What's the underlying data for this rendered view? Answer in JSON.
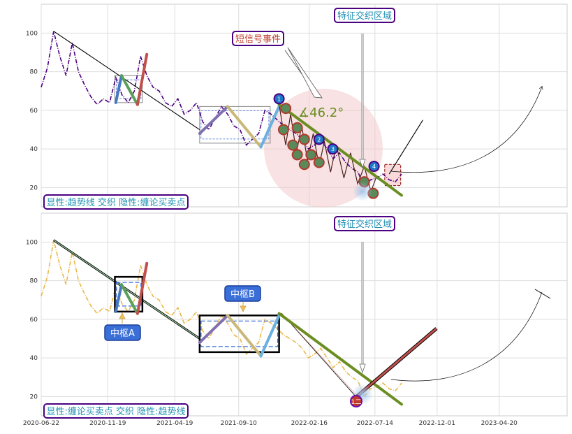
{
  "chart_data": [
    {
      "panel": "top",
      "type": "line",
      "ylim": [
        10,
        115
      ],
      "yticks": [
        20,
        40,
        60,
        80,
        100
      ],
      "xlim": [
        "2020-06-22",
        "2023-09-20"
      ],
      "grid": true,
      "colors": {
        "price": "#4b0082",
        "trend": "#6b8e23",
        "stroke": "#000000"
      },
      "price_series": {
        "name": "",
        "x": [
          "2020-06-22",
          "2020-07-06",
          "2020-07-20",
          "2020-08-03",
          "2020-08-17",
          "2020-08-31",
          "2020-09-14",
          "2020-09-28",
          "2020-10-12",
          "2020-10-26",
          "2020-11-09",
          "2020-11-23",
          "2020-12-07",
          "2020-12-21",
          "2021-01-04",
          "2021-01-18",
          "2021-02-01",
          "2021-02-15",
          "2021-03-01",
          "2021-03-15",
          "2021-03-29",
          "2021-04-12",
          "2021-04-26",
          "2021-05-10",
          "2021-05-24",
          "2021-06-07",
          "2021-06-21",
          "2021-07-05",
          "2021-07-19",
          "2021-08-02",
          "2021-08-16",
          "2021-08-30",
          "2021-09-13",
          "2021-09-27",
          "2021-10-11",
          "2021-10-25",
          "2021-11-08",
          "2021-11-22",
          "2021-12-06",
          "2021-12-20",
          "2022-01-03",
          "2022-01-17",
          "2022-01-31",
          "2022-02-14",
          "2022-02-28",
          "2022-03-14",
          "2022-03-28",
          "2022-04-11",
          "2022-04-25",
          "2022-05-09",
          "2022-05-23",
          "2022-06-06",
          "2022-06-20",
          "2022-07-04",
          "2022-07-18",
          "2022-08-01",
          "2022-08-15",
          "2022-08-29",
          "2022-09-12"
        ],
        "values": [
          72,
          82,
          101,
          88,
          78,
          95,
          80,
          73,
          67,
          63,
          66,
          64,
          77,
          68,
          64,
          70,
          88,
          78,
          72,
          70,
          64,
          62,
          66,
          58,
          60,
          64,
          54,
          50,
          56,
          62,
          58,
          52,
          50,
          42,
          45,
          48,
          60,
          58,
          55,
          52,
          50,
          48,
          45,
          40,
          42,
          45,
          40,
          35,
          38,
          33,
          30,
          28,
          20,
          24,
          25,
          27,
          24,
          23,
          27
        ]
      },
      "strokes": [
        {
          "x": [
            "2020-07-20",
            "2021-06-14"
          ],
          "y": [
            101,
            50
          ],
          "color": "#000000"
        },
        {
          "x": [
            "2022-08-15",
            "2022-10-30"
          ],
          "y": [
            27,
            55
          ],
          "color": "#000000"
        }
      ],
      "segments": [
        {
          "x": [
            "2020-12-07",
            "2020-12-20"
          ],
          "y": [
            64,
            78
          ],
          "color": "#4a78c0"
        },
        {
          "x": [
            "2020-12-20",
            "2021-01-25"
          ],
          "y": [
            78,
            63
          ],
          "color": "#5aa05a"
        },
        {
          "x": [
            "2021-01-25",
            "2021-02-15"
          ],
          "y": [
            63,
            89
          ],
          "color": "#c0504d"
        },
        {
          "x": [
            "2021-06-14",
            "2021-08-16"
          ],
          "y": [
            48,
            62
          ],
          "color": "#8070b0"
        },
        {
          "x": [
            "2021-08-16",
            "2021-10-30"
          ],
          "y": [
            62,
            41
          ],
          "color": "#c9b878"
        },
        {
          "x": [
            "2021-10-30",
            "2021-12-10"
          ],
          "y": [
            41,
            62
          ],
          "color": "#6ab0e0"
        }
      ],
      "trend_line": {
        "x": [
          "2021-12-10",
          "2022-09-12"
        ],
        "y": [
          63,
          16
        ],
        "color": "#6b8e23"
      },
      "zigzag": {
        "x": [
          "2021-12-10",
          "2021-12-25",
          "2022-01-05",
          "2022-01-18",
          "2022-01-30",
          "2022-02-12",
          "2022-02-25",
          "2022-03-10",
          "2022-03-22",
          "2022-04-05",
          "2022-04-18",
          "2022-05-05",
          "2022-05-20",
          "2022-06-05",
          "2022-06-20",
          "2022-07-05",
          "2022-07-18"
        ],
        "y": [
          63,
          42,
          58,
          38,
          52,
          34,
          48,
          31,
          44,
          28,
          42,
          25,
          38,
          22,
          31,
          18,
          26
        ]
      },
      "zones": [
        {
          "type": "box",
          "x": [
            "2020-12-05",
            "2021-02-05"
          ],
          "y": [
            64,
            78
          ]
        },
        {
          "type": "box",
          "x": [
            "2021-06-14",
            "2021-11-20"
          ],
          "y": [
            43,
            62
          ]
        },
        {
          "type": "box_red",
          "x": [
            "2022-08-05",
            "2022-09-10"
          ],
          "y": [
            21,
            32
          ]
        }
      ],
      "buy_sell_markers": [
        {
          "x": "2021-12-10",
          "y": 66,
          "label": "1"
        },
        {
          "x": "2022-03-10",
          "y": 45,
          "label": "2"
        },
        {
          "x": "2022-04-10",
          "y": 40,
          "label": "3"
        },
        {
          "x": "2022-07-12",
          "y": 31,
          "label": "4"
        }
      ],
      "divergence_markers": [
        {
          "x": "2021-12-25",
          "y": 61
        },
        {
          "x": "2021-12-20",
          "y": 50
        },
        {
          "x": "2022-01-20",
          "y": 51
        },
        {
          "x": "2022-01-10",
          "y": 42
        },
        {
          "x": "2022-02-05",
          "y": 45
        },
        {
          "x": "2022-01-20",
          "y": 37
        },
        {
          "x": "2022-02-20",
          "y": 37
        },
        {
          "x": "2022-02-05",
          "y": 32
        },
        {
          "x": "2022-03-10",
          "y": 33
        },
        {
          "x": "2022-06-20",
          "y": 23
        },
        {
          "x": "2022-07-10",
          "y": 17
        }
      ],
      "angle_label": "∡46.2°",
      "annotations": [
        {
          "text": "短信号事件",
          "style": "red"
        },
        {
          "text": "特征交织区域",
          "style": "blue"
        },
        {
          "text": "显性:趋势线 交织 隐性:缠论买卖点",
          "style": "blue"
        }
      ]
    },
    {
      "panel": "bottom",
      "type": "line",
      "ylim": [
        10,
        115
      ],
      "yticks": [
        20,
        40,
        60,
        80,
        100
      ],
      "xlim": [
        "2020-06-22",
        "2023-09-20"
      ],
      "grid": true,
      "x_tick_labels": [
        "2020-06-22",
        "2020-11-19",
        "2021-04-19",
        "2021-09-10",
        "2022-02-16",
        "2022-07-14",
        "2022-12-01",
        "2023-04-20"
      ],
      "colors": {
        "price": "#e8b84a",
        "trend": "#6b8e23",
        "stroke": "#000000"
      },
      "segments": [
        {
          "x": [
            "2020-12-07",
            "2020-12-20"
          ],
          "y": [
            64,
            78
          ],
          "color": "#4a78c0"
        },
        {
          "x": [
            "2020-12-20",
            "2021-01-25"
          ],
          "y": [
            78,
            63
          ],
          "color": "#5aa05a"
        },
        {
          "x": [
            "2021-01-25",
            "2021-02-15"
          ],
          "y": [
            63,
            89
          ],
          "color": "#c0504d"
        },
        {
          "x": [
            "2021-06-14",
            "2021-08-16"
          ],
          "y": [
            48,
            62
          ],
          "color": "#8070b0"
        },
        {
          "x": [
            "2021-08-16",
            "2021-10-30"
          ],
          "y": [
            62,
            41
          ],
          "color": "#c9b878"
        },
        {
          "x": [
            "2021-10-30",
            "2021-12-10"
          ],
          "y": [
            41,
            62
          ],
          "color": "#6ab0e0"
        }
      ],
      "zones": [
        {
          "type": "box",
          "x": [
            "2020-12-05",
            "2021-02-05"
          ],
          "y": [
            64,
            82
          ]
        },
        {
          "type": "box",
          "x": [
            "2021-06-14",
            "2021-12-10"
          ],
          "y": [
            43,
            62
          ]
        }
      ],
      "marker": {
        "x": "2022-06-28",
        "y": 17,
        "label": "1二"
      },
      "annotations": [
        {
          "text": "中枢A",
          "style": "filled"
        },
        {
          "text": "中枢B",
          "style": "filled"
        },
        {
          "text": "特征交织区域",
          "style": "blue"
        },
        {
          "text": "显性:缠论买卖点 交织 隐性:趋势线",
          "style": "blue"
        }
      ]
    }
  ]
}
